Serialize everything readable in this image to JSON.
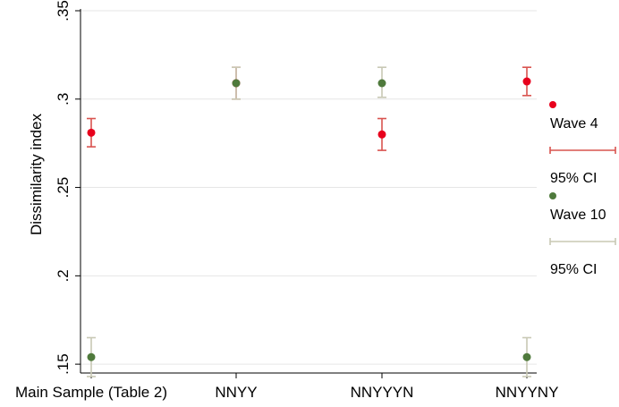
{
  "chart_data": {
    "type": "scatter",
    "title": "",
    "xlabel": "",
    "ylabel": "Dissimilarity index",
    "ylim": [
      0.145,
      0.35
    ],
    "yticks": [
      0.15,
      0.2,
      0.25,
      0.3,
      0.35
    ],
    "ytick_labels": [
      ".15",
      ".2",
      ".25",
      ".3",
      ".35"
    ],
    "categories": [
      "Main Sample (Table 2)",
      "NNYY",
      "NNYYYN",
      "NNYYNY"
    ],
    "grid": true,
    "legend_position": "right",
    "series": [
      {
        "name": "Wave 4",
        "ci_name": "95% CI",
        "color": "#e8001c",
        "ci_color": "#d9534f",
        "values": [
          0.281,
          0.309,
          0.28,
          0.31
        ],
        "ci_low": [
          0.273,
          0.3,
          0.271,
          0.302
        ],
        "ci_high": [
          0.289,
          0.318,
          0.289,
          0.318
        ]
      },
      {
        "name": "Wave 10",
        "ci_name": "95% CI",
        "color": "#4f7a3c",
        "ci_color": "#c8c8b4",
        "values": [
          0.154,
          0.309,
          0.309,
          0.154
        ],
        "ci_low": [
          0.143,
          0.3,
          0.301,
          0.143
        ],
        "ci_high": [
          0.165,
          0.318,
          0.318,
          0.165
        ]
      }
    ]
  }
}
